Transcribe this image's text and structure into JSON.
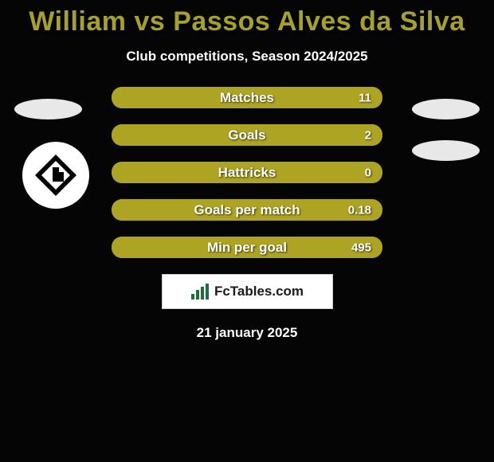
{
  "background_color": "#050505",
  "title": {
    "text": "William vs Passos Alves da Silva",
    "color": "#a7a12a",
    "fontsize": 34
  },
  "subtitle": {
    "text": "Club competitions, Season 2024/2025",
    "color": "#ffffff",
    "fontsize": 17
  },
  "bar_bg_color": "#5a5512",
  "bar_fill_color": "#ada424",
  "label_color": "#ffffff",
  "value_color": "#ffffff",
  "rows": [
    {
      "label": "Matches",
      "value": "11",
      "fill_pct": 100
    },
    {
      "label": "Goals",
      "value": "2",
      "fill_pct": 100
    },
    {
      "label": "Hattricks",
      "value": "0",
      "fill_pct": 100
    },
    {
      "label": "Goals per match",
      "value": "0.18",
      "fill_pct": 100
    },
    {
      "label": "Min per goal",
      "value": "495",
      "fill_pct": 100
    }
  ],
  "badge_left": {
    "ellipse_color": "#e8e8e8",
    "circle_bg": "#ffffff"
  },
  "badge_right": {
    "ellipse_color": "#e8e8e8"
  },
  "logo": {
    "text": "FcTables.com",
    "bar_color": "#1f6e3a",
    "box_bg": "#ffffff",
    "box_border": "#cfcfcf",
    "text_color": "#1a1a1a"
  },
  "date": {
    "text": "21 january 2025",
    "color": "#ffffff"
  }
}
